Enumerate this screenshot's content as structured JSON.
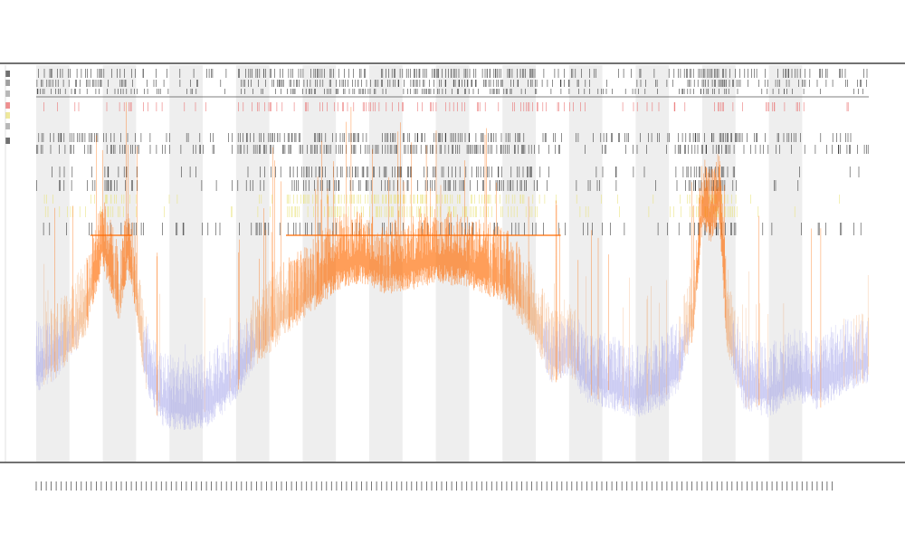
{
  "chart_data": {
    "type": "area",
    "title": "",
    "subtitle_lines": [
      "",
      ""
    ],
    "xlabel": "",
    "ylabel": "",
    "grid": false,
    "alternating_column_bands": true,
    "colors": {
      "band": "#eeeeee",
      "low_signal": "#9a9ae6",
      "high_signal": "#ff6a00",
      "mid_signal": "#f0a060",
      "ticks_dark": "#222222",
      "ticks_red": "#e86060",
      "ticks_yellow": "#e8e070",
      "axis": "#444444"
    },
    "x_range": [
      0,
      1
    ],
    "y_range": [
      0,
      1
    ],
    "bands": [
      [
        0.0,
        0.04
      ],
      [
        0.08,
        0.12
      ],
      [
        0.16,
        0.2
      ],
      [
        0.24,
        0.28
      ],
      [
        0.32,
        0.36
      ],
      [
        0.4,
        0.44
      ],
      [
        0.48,
        0.52
      ],
      [
        0.56,
        0.6
      ],
      [
        0.64,
        0.68
      ],
      [
        0.72,
        0.76
      ],
      [
        0.8,
        0.84
      ],
      [
        0.88,
        0.92
      ]
    ],
    "signal_profile": [
      {
        "x": 0.0,
        "y": 0.3
      },
      {
        "x": 0.02,
        "y": 0.33
      },
      {
        "x": 0.04,
        "y": 0.38
      },
      {
        "x": 0.06,
        "y": 0.45
      },
      {
        "x": 0.08,
        "y": 0.62
      },
      {
        "x": 0.09,
        "y": 0.55
      },
      {
        "x": 0.1,
        "y": 0.48
      },
      {
        "x": 0.11,
        "y": 0.6
      },
      {
        "x": 0.12,
        "y": 0.5
      },
      {
        "x": 0.13,
        "y": 0.32
      },
      {
        "x": 0.15,
        "y": 0.22
      },
      {
        "x": 0.18,
        "y": 0.2
      },
      {
        "x": 0.21,
        "y": 0.22
      },
      {
        "x": 0.24,
        "y": 0.28
      },
      {
        "x": 0.26,
        "y": 0.36
      },
      {
        "x": 0.28,
        "y": 0.4
      },
      {
        "x": 0.3,
        "y": 0.45
      },
      {
        "x": 0.33,
        "y": 0.5
      },
      {
        "x": 0.36,
        "y": 0.56
      },
      {
        "x": 0.39,
        "y": 0.58
      },
      {
        "x": 0.42,
        "y": 0.55
      },
      {
        "x": 0.45,
        "y": 0.56
      },
      {
        "x": 0.48,
        "y": 0.58
      },
      {
        "x": 0.51,
        "y": 0.57
      },
      {
        "x": 0.54,
        "y": 0.55
      },
      {
        "x": 0.57,
        "y": 0.52
      },
      {
        "x": 0.6,
        "y": 0.42
      },
      {
        "x": 0.62,
        "y": 0.32
      },
      {
        "x": 0.64,
        "y": 0.35
      },
      {
        "x": 0.66,
        "y": 0.28
      },
      {
        "x": 0.69,
        "y": 0.26
      },
      {
        "x": 0.72,
        "y": 0.24
      },
      {
        "x": 0.75,
        "y": 0.26
      },
      {
        "x": 0.77,
        "y": 0.3
      },
      {
        "x": 0.79,
        "y": 0.45
      },
      {
        "x": 0.8,
        "y": 0.72
      },
      {
        "x": 0.81,
        "y": 0.68
      },
      {
        "x": 0.82,
        "y": 0.74
      },
      {
        "x": 0.83,
        "y": 0.4
      },
      {
        "x": 0.85,
        "y": 0.26
      },
      {
        "x": 0.88,
        "y": 0.24
      },
      {
        "x": 0.91,
        "y": 0.28
      },
      {
        "x": 0.94,
        "y": 0.26
      },
      {
        "x": 0.97,
        "y": 0.3
      },
      {
        "x": 1.0,
        "y": 0.32
      }
    ],
    "track_density": [
      {
        "range": [
          0.0,
          0.12
        ],
        "density": 0.7
      },
      {
        "range": [
          0.24,
          0.6
        ],
        "density": 0.9
      },
      {
        "range": [
          0.6,
          0.75
        ],
        "density": 0.4
      },
      {
        "range": [
          0.77,
          0.84
        ],
        "density": 1.0
      },
      {
        "range": [
          0.84,
          1.0
        ],
        "density": 0.35
      }
    ],
    "dense_block_ranges": [
      [
        0.08,
        0.12
      ],
      [
        0.3,
        0.6
      ],
      [
        0.78,
        0.84
      ]
    ],
    "x_tick_count": 160
  }
}
